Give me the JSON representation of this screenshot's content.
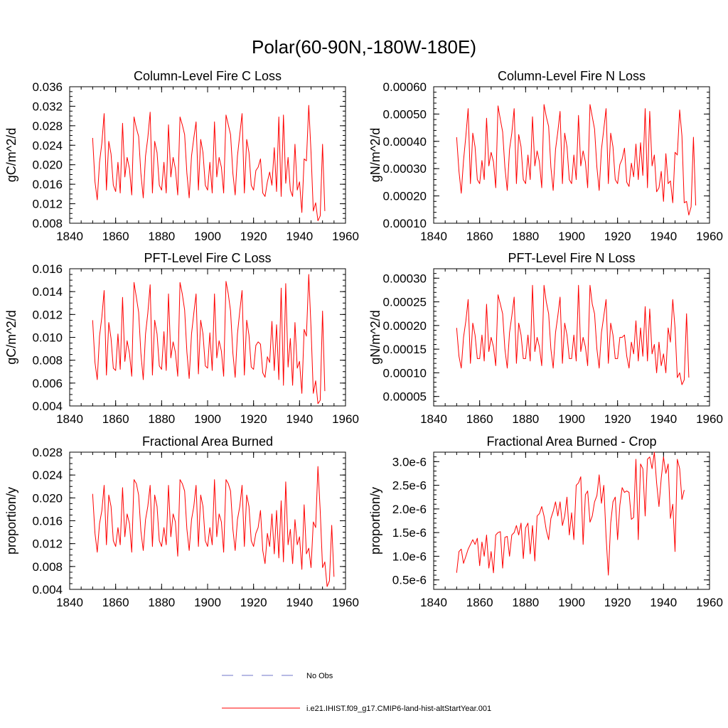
{
  "figure": {
    "title": "Polar(60-90N,-180W-180E)",
    "legend": [
      {
        "label": "No Obs",
        "color": "#6f74c8",
        "style": "dashed"
      },
      {
        "label": "i.e21.IHIST.f09_g17.CMIP6-land-hist-altStartYear.001",
        "color": "#ff0000",
        "style": "solid"
      }
    ]
  },
  "chart_data": [
    {
      "type": "line",
      "title": "Column-Level Fire C Loss",
      "ylabel": "gC/m^2/d",
      "xlim": [
        1840,
        1960
      ],
      "ylim": [
        0.008,
        0.036
      ],
      "xticks": [
        1840,
        1860,
        1880,
        1900,
        1920,
        1940,
        1960
      ],
      "xtick_labels": [
        "1840",
        "1860",
        "1880",
        "1900",
        "1920",
        "1940",
        "1960"
      ],
      "yticks": [
        0.008,
        0.012,
        0.016,
        0.02,
        0.024,
        0.028,
        0.032,
        0.036
      ],
      "ytick_labels": [
        "0.008",
        "0.012",
        "0.016",
        "0.020",
        "0.024",
        "0.028",
        "0.032",
        "0.036"
      ],
      "ymin_tick_step": 0.001,
      "x_start": 1850,
      "series": [
        {
          "color": "#ff0000",
          "values": [
            0.0255,
            0.0165,
            0.0128,
            0.0205,
            0.0245,
            0.0305,
            0.0148,
            0.0248,
            0.0222,
            0.0158,
            0.0145,
            0.0205,
            0.0142,
            0.0285,
            0.0175,
            0.0215,
            0.0192,
            0.0138,
            0.0298,
            0.0275,
            0.0258,
            0.0182,
            0.0132,
            0.0218,
            0.0255,
            0.0308,
            0.0142,
            0.0248,
            0.0225,
            0.0158,
            0.0148,
            0.0205,
            0.0142,
            0.0282,
            0.0175,
            0.0215,
            0.0192,
            0.0138,
            0.0298,
            0.0282,
            0.0262,
            0.0182,
            0.0132,
            0.0218,
            0.0255,
            0.0288,
            0.0148,
            0.0252,
            0.0225,
            0.0158,
            0.0148,
            0.0205,
            0.0142,
            0.0288,
            0.0175,
            0.0215,
            0.0195,
            0.0142,
            0.0302,
            0.0282,
            0.0262,
            0.0182,
            0.0138,
            0.0218,
            0.0262,
            0.0305,
            0.0142,
            0.0252,
            0.0225,
            0.0158,
            0.0148,
            0.0188,
            0.0195,
            0.0212,
            0.0142,
            0.0135,
            0.0165,
            0.0185,
            0.0158,
            0.0235,
            0.0145,
            0.0298,
            0.0135,
            0.0302,
            0.0162,
            0.0215,
            0.0148,
            0.0135,
            0.0242,
            0.0148,
            0.0165,
            0.0102,
            0.0212,
            0.0208,
            0.0322,
            0.0225,
            0.0105,
            0.0122,
            0.0085,
            0.0095,
            0.0242,
            0.0105
          ]
        }
      ]
    },
    {
      "type": "line",
      "title": "Column-Level Fire N Loss",
      "ylabel": "gN/m^2/d",
      "xlim": [
        1840,
        1960
      ],
      "ylim": [
        0.0001,
        0.0006
      ],
      "xticks": [
        1840,
        1860,
        1880,
        1900,
        1920,
        1940,
        1960
      ],
      "xtick_labels": [
        "1840",
        "1860",
        "1880",
        "1900",
        "1920",
        "1940",
        "1960"
      ],
      "yticks": [
        0.0001,
        0.0002,
        0.0003,
        0.0004,
        0.0005,
        0.0006
      ],
      "ytick_labels": [
        "0.00010",
        "0.00020",
        "0.00030",
        "0.00040",
        "0.00050",
        "0.00060"
      ],
      "ymin_tick_step": 2e-05,
      "x_start": 1850,
      "series": [
        {
          "color": "#ff0000",
          "values": [
            0.000415,
            0.00029,
            0.00021,
            0.00033,
            0.00042,
            0.00052,
            0.000245,
            0.00043,
            0.00038,
            0.00026,
            0.000245,
            0.00033,
            0.00026,
            0.000485,
            0.00031,
            0.00036,
            0.000325,
            0.00023,
            0.00053,
            0.00048,
            0.000435,
            0.000305,
            0.00022,
            0.00037,
            0.00043,
            0.00052,
            0.000245,
            0.000425,
            0.00038,
            0.00026,
            0.000245,
            0.00035,
            0.00026,
            0.00049,
            0.00031,
            0.000365,
            0.000325,
            0.00023,
            0.000535,
            0.00049,
            0.000455,
            0.000305,
            0.00022,
            0.00037,
            0.000435,
            0.00051,
            0.000245,
            0.00043,
            0.00038,
            0.00026,
            0.000245,
            0.00035,
            0.00026,
            0.000495,
            0.00031,
            0.000365,
            0.000325,
            0.00023,
            0.000535,
            0.00049,
            0.000445,
            0.000305,
            0.00022,
            0.00037,
            0.000445,
            0.00052,
            0.000245,
            0.00043,
            0.00038,
            0.00026,
            0.000245,
            0.000315,
            0.000335,
            0.000375,
            0.00025,
            0.000235,
            0.00032,
            0.00027,
            0.00039,
            0.00026,
            0.000395,
            0.000275,
            0.00052,
            0.00023,
            0.00051,
            0.00031,
            0.00035,
            0.000215,
            0.00023,
            0.00029,
            0.00018,
            0.000355,
            0.000245,
            0.000255,
            0.000175,
            0.00036,
            0.00035,
            0.000515,
            0.00042,
            0.000175,
            0.00018,
            0.00013,
            0.00016,
            0.000415,
            0.000165
          ]
        }
      ]
    },
    {
      "type": "line",
      "title": "PFT-Level Fire C Loss",
      "ylabel": "gC/m^2/d",
      "xlim": [
        1840,
        1960
      ],
      "ylim": [
        0.004,
        0.016
      ],
      "xticks": [
        1840,
        1860,
        1880,
        1900,
        1920,
        1940,
        1960
      ],
      "xtick_labels": [
        "1840",
        "1860",
        "1880",
        "1900",
        "1920",
        "1940",
        "1960"
      ],
      "yticks": [
        0.004,
        0.006,
        0.008,
        0.01,
        0.012,
        0.014,
        0.016
      ],
      "ytick_labels": [
        "0.004",
        "0.006",
        "0.008",
        "0.010",
        "0.012",
        "0.014",
        "0.016"
      ],
      "ymin_tick_step": 0.0005,
      "x_start": 1850,
      "series": [
        {
          "color": "#ff0000",
          "values": [
            0.0115,
            0.0078,
            0.0063,
            0.0101,
            0.0118,
            0.0141,
            0.0067,
            0.0113,
            0.0099,
            0.0073,
            0.0071,
            0.0103,
            0.0072,
            0.0135,
            0.0079,
            0.0097,
            0.0086,
            0.0066,
            0.0148,
            0.0135,
            0.0122,
            0.0086,
            0.0063,
            0.0103,
            0.0121,
            0.0146,
            0.0067,
            0.0115,
            0.0103,
            0.0075,
            0.0072,
            0.0105,
            0.0071,
            0.0138,
            0.0082,
            0.0096,
            0.0087,
            0.0066,
            0.0148,
            0.0138,
            0.0124,
            0.0087,
            0.0064,
            0.0103,
            0.0121,
            0.0138,
            0.0068,
            0.0115,
            0.0103,
            0.0075,
            0.0073,
            0.0104,
            0.0071,
            0.0138,
            0.0082,
            0.0097,
            0.0088,
            0.0066,
            0.0149,
            0.0138,
            0.0123,
            0.0086,
            0.0065,
            0.0103,
            0.0123,
            0.0141,
            0.0067,
            0.0115,
            0.0102,
            0.0074,
            0.0072,
            0.0093,
            0.0096,
            0.0094,
            0.0069,
            0.0065,
            0.0083,
            0.0078,
            0.0114,
            0.0071,
            0.0111,
            0.0063,
            0.0143,
            0.0058,
            0.0147,
            0.0074,
            0.0099,
            0.0058,
            0.0113,
            0.0073,
            0.0079,
            0.0051,
            0.0107,
            0.0101,
            0.0155,
            0.0108,
            0.0051,
            0.0062,
            0.0042,
            0.0045,
            0.0123,
            0.0053
          ]
        }
      ]
    },
    {
      "type": "line",
      "title": "PFT-Level Fire N Loss",
      "ylabel": "gN/m^2/d",
      "xlim": [
        1840,
        1960
      ],
      "ylim": [
        3e-05,
        0.00032
      ],
      "xticks": [
        1840,
        1860,
        1880,
        1900,
        1920,
        1940,
        1960
      ],
      "xtick_labels": [
        "1840",
        "1860",
        "1880",
        "1900",
        "1920",
        "1940",
        "1960"
      ],
      "yticks": [
        5e-05,
        0.0001,
        0.00015,
        0.0002,
        0.00025,
        0.0003
      ],
      "ytick_labels": [
        "0.00005",
        "0.00010",
        "0.00015",
        "0.00020",
        "0.00025",
        "0.00030"
      ],
      "ymin_tick_step": 1e-05,
      "x_start": 1850,
      "series": [
        {
          "color": "#ff0000",
          "values": [
            0.000195,
            0.000135,
            0.00011,
            0.000175,
            0.00021,
            0.000255,
            0.00012,
            0.000205,
            0.00018,
            0.00013,
            0.00013,
            0.00018,
            0.000125,
            0.000245,
            0.000145,
            0.000175,
            0.000155,
            0.000115,
            0.000265,
            0.000245,
            0.000225,
            0.00015,
            0.00011,
            0.000185,
            0.00022,
            0.00026,
            0.00012,
            0.000205,
            0.00018,
            0.00013,
            0.00013,
            0.00018,
            0.000125,
            0.000285,
            0.000145,
            0.000175,
            0.000155,
            0.000115,
            0.000285,
            0.00025,
            0.000225,
            0.00015,
            0.00011,
            0.000185,
            0.00022,
            0.00026,
            0.00012,
            0.000205,
            0.00018,
            0.00013,
            0.00013,
            0.00018,
            0.000125,
            0.000285,
            0.000145,
            0.000175,
            0.000155,
            0.000115,
            0.000285,
            0.000245,
            0.000225,
            0.00015,
            0.00011,
            0.000185,
            0.00022,
            0.000255,
            0.00012,
            0.000205,
            0.00018,
            0.00013,
            0.00013,
            0.000175,
            0.000175,
            0.00018,
            0.000135,
            0.00011,
            0.000165,
            0.00014,
            0.00021,
            0.000125,
            0.000195,
            0.000135,
            0.00024,
            0.000125,
            0.000235,
            0.00014,
            0.00016,
            0.0001,
            0.000165,
            0.000115,
            0.00014,
            0.0001,
            0.000195,
            0.000165,
            0.000255,
            0.000195,
            9e-05,
            0.0001,
            7.5e-05,
            8.5e-05,
            0.000225,
            9e-05
          ]
        }
      ]
    },
    {
      "type": "line",
      "title": "Fractional Area Burned",
      "ylabel": "proportion/y",
      "xlim": [
        1840,
        1960
      ],
      "ylim": [
        0.004,
        0.028
      ],
      "xticks": [
        1840,
        1860,
        1880,
        1900,
        1920,
        1940,
        1960
      ],
      "xtick_labels": [
        "1840",
        "1860",
        "1880",
        "1900",
        "1920",
        "1940",
        "1960"
      ],
      "yticks": [
        0.004,
        0.008,
        0.012,
        0.016,
        0.02,
        0.024,
        0.028
      ],
      "ytick_labels": [
        "0.004",
        "0.008",
        "0.012",
        "0.016",
        "0.020",
        "0.024",
        "0.028"
      ],
      "ymin_tick_step": 0.001,
      "x_start": 1850,
      "series": [
        {
          "color": "#ff0000",
          "values": [
            0.0207,
            0.0138,
            0.0105,
            0.0155,
            0.0178,
            0.0222,
            0.0118,
            0.0205,
            0.0185,
            0.0125,
            0.0115,
            0.0148,
            0.0118,
            0.0218,
            0.0132,
            0.0172,
            0.0155,
            0.0105,
            0.0232,
            0.0225,
            0.0205,
            0.0142,
            0.0108,
            0.0162,
            0.0185,
            0.0222,
            0.0115,
            0.0205,
            0.0185,
            0.0125,
            0.0115,
            0.0148,
            0.0118,
            0.0222,
            0.0132,
            0.0172,
            0.0158,
            0.0098,
            0.0232,
            0.0225,
            0.0212,
            0.0145,
            0.0108,
            0.0162,
            0.0185,
            0.0222,
            0.0115,
            0.0205,
            0.0185,
            0.0125,
            0.0115,
            0.0148,
            0.0118,
            0.0232,
            0.0132,
            0.0172,
            0.0158,
            0.0105,
            0.0232,
            0.0225,
            0.0212,
            0.0145,
            0.0108,
            0.0162,
            0.0185,
            0.0222,
            0.0115,
            0.0205,
            0.0185,
            0.0125,
            0.0115,
            0.0138,
            0.0148,
            0.0178,
            0.0108,
            0.0085,
            0.0138,
            0.0115,
            0.0172,
            0.0102,
            0.0178,
            0.0095,
            0.0195,
            0.0088,
            0.0228,
            0.0118,
            0.0145,
            0.0085,
            0.0162,
            0.0118,
            0.0132,
            0.0075,
            0.0188,
            0.0102,
            0.0112,
            0.0078,
            0.0158,
            0.0148,
            0.0255,
            0.0178,
            0.0078,
            0.0088,
            0.0045,
            0.0055,
            0.0152,
            0.0062
          ]
        }
      ]
    },
    {
      "type": "line",
      "title": "Fractional Area Burned - Crop",
      "ylabel": "proportion/y",
      "xlim": [
        1840,
        1960
      ],
      "ylim": [
        3e-07,
        3.2e-06
      ],
      "xticks": [
        1840,
        1860,
        1880,
        1900,
        1920,
        1940,
        1960
      ],
      "xtick_labels": [
        "1840",
        "1860",
        "1880",
        "1900",
        "1920",
        "1940",
        "1960"
      ],
      "yticks": [
        5e-07,
        1e-06,
        1.5e-06,
        2e-06,
        2.5e-06,
        3e-06
      ],
      "ytick_labels": [
        "0.5e-6",
        "1.0e-6",
        "1.5e-6",
        "2.0e-6",
        "2.5e-6",
        "3.0e-6"
      ],
      "ymin_tick_step": 1e-07,
      "x_start": 1850,
      "series": [
        {
          "color": "#ff0000",
          "values": [
            6.5e-07,
            1.1e-06,
            1.15e-06,
            8.5e-07,
            1e-06,
            1.15e-06,
            1.25e-06,
            1.35e-06,
            1.25e-06,
            1.38e-06,
            8e-07,
            1.3e-06,
            1e-06,
            1.45e-06,
            7.5e-07,
            1.1e-06,
            6.5e-07,
            1.45e-06,
            1.5e-06,
            1.52e-06,
            7.5e-07,
            1.4e-06,
            1.42e-06,
            1e-06,
            1.45e-06,
            1.5e-06,
            1.65e-06,
            1.45e-06,
            1.7e-06,
            9.5e-07,
            1.6e-06,
            1.7e-06,
            1.05e-06,
            1.65e-06,
            9e-07,
            1.85e-06,
            1.9e-06,
            2.05e-06,
            1.85e-06,
            1.55e-06,
            1.35e-06,
            1.8e-06,
            1.95e-06,
            2.15e-06,
            1.85e-06,
            2.15e-06,
            1.65e-06,
            1.85e-06,
            2.25e-06,
            1.45e-06,
            1.92e-06,
            1.35e-06,
            2.5e-06,
            2.55e-06,
            2.68e-06,
            1.25e-06,
            2.3e-06,
            2.38e-06,
            1.72e-06,
            1.85e-06,
            2.15e-06,
            2.28e-06,
            2.72e-06,
            2.12e-06,
            2.5e-06,
            1.42e-06,
            6e-07,
            1.7e-06,
            2.15e-06,
            2.25e-06,
            1.35e-06,
            2.08e-06,
            2.45e-06,
            2.35e-06,
            2.38e-06,
            2.35e-06,
            1.78e-06,
            1.82e-06,
            3.05e-06,
            1.35e-06,
            2.95e-06,
            2.85e-06,
            1.85e-06,
            3.05e-06,
            3.1e-06,
            2.85e-06,
            3.2e-06,
            2.55e-06,
            2.05e-06,
            2.65e-06,
            3.1e-06,
            2.75e-06,
            2.95e-06,
            1.8e-06,
            2.1e-06,
            1.1e-06,
            3.05e-06,
            2.85e-06,
            2.2e-06,
            2.4e-06
          ]
        }
      ]
    }
  ]
}
